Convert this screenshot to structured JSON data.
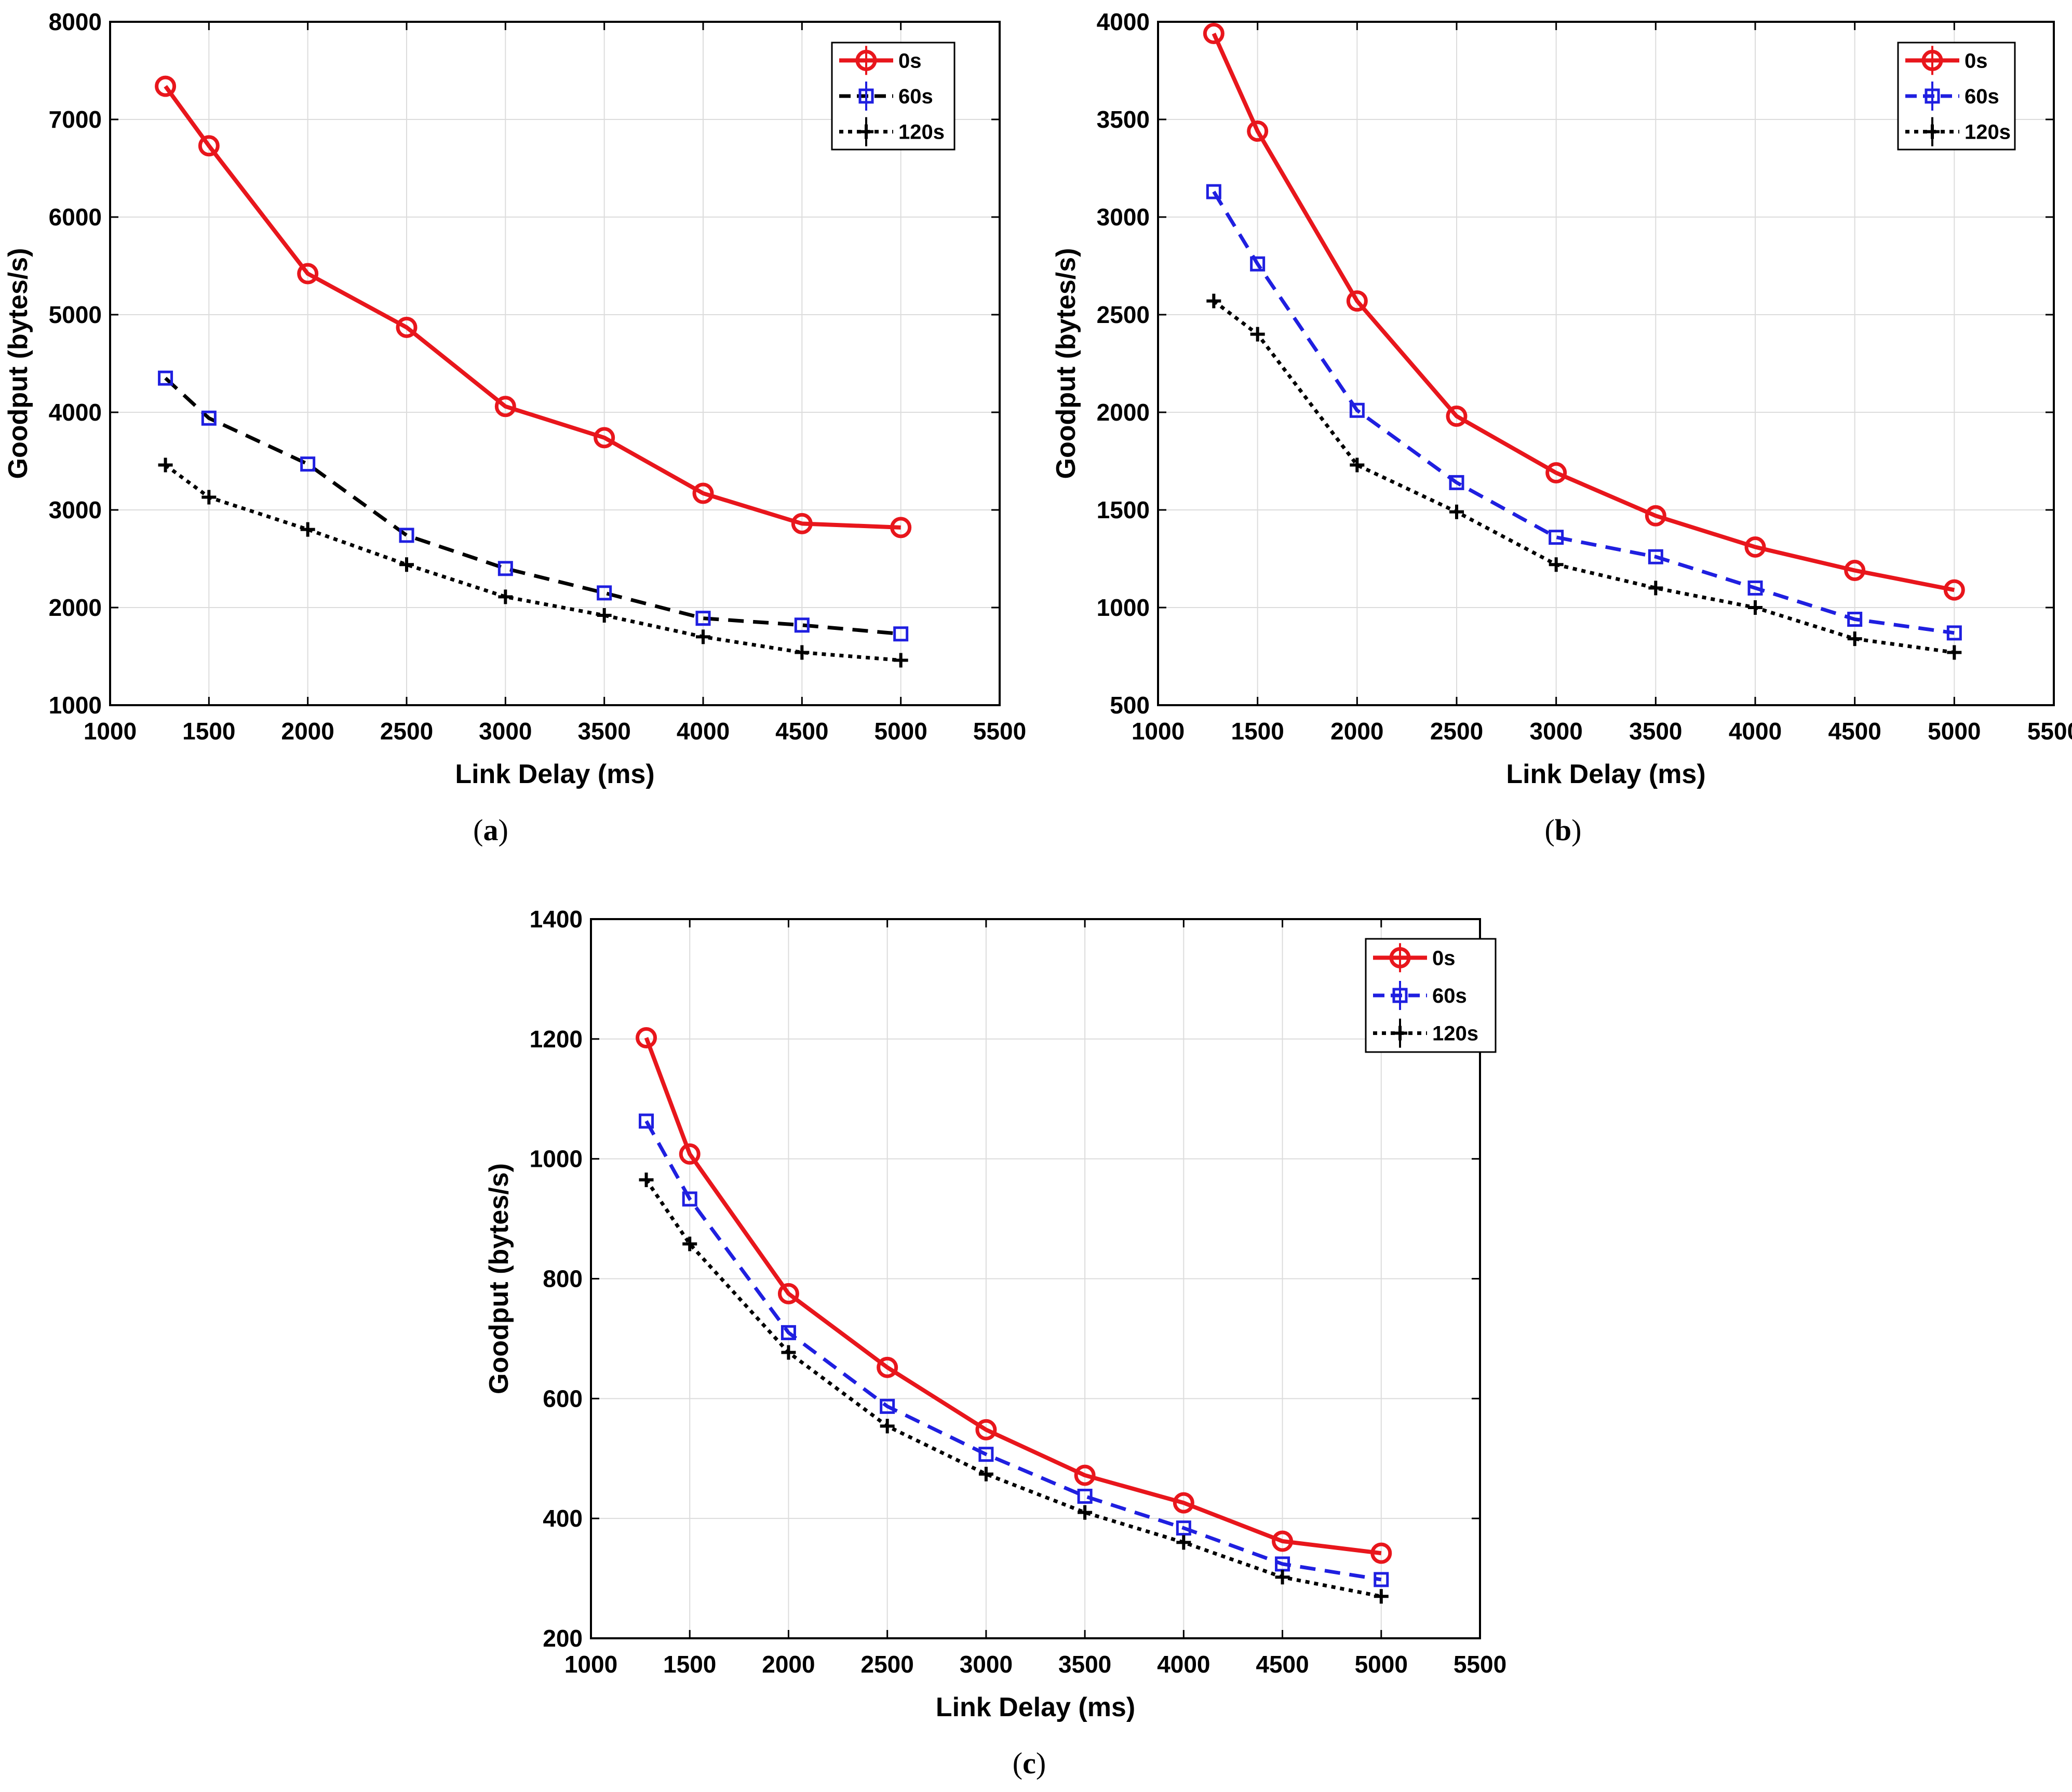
{
  "chart_data": [
    {
      "type": "line",
      "panel": "a",
      "caption_letter": "a",
      "xlabel": "Link Delay (ms)",
      "ylabel": "Goodput (bytes/s)",
      "xlim": [
        1000,
        5500
      ],
      "ylim": [
        1000,
        8000
      ],
      "xticks": [
        1000,
        1500,
        2000,
        2500,
        3000,
        3500,
        4000,
        4500,
        5000,
        5500
      ],
      "yticks": [
        1000,
        2000,
        3000,
        4000,
        5000,
        6000,
        7000,
        8000
      ],
      "grid": true,
      "legend_position": "top-right",
      "x": [
        1280,
        1500,
        2000,
        2500,
        3000,
        3500,
        4000,
        4500,
        5000
      ],
      "series": [
        {
          "name": "0s",
          "color": "#e8161c",
          "style": "solid",
          "marker": "circle",
          "values": [
            7340,
            6730,
            5420,
            4870,
            4060,
            3740,
            3170,
            2860,
            2820
          ]
        },
        {
          "name": "60s",
          "color": "#000000",
          "marker_color": "#1f1fe0",
          "style": "dashed",
          "marker": "square",
          "values": [
            4350,
            3940,
            3470,
            2740,
            2400,
            2150,
            1890,
            1820,
            1730
          ]
        },
        {
          "name": "120s",
          "color": "#000000",
          "style": "dotted",
          "marker": "plus",
          "values": [
            3460,
            3130,
            2800,
            2440,
            2110,
            1920,
            1700,
            1540,
            1460
          ]
        }
      ]
    },
    {
      "type": "line",
      "panel": "b",
      "caption_letter": "b",
      "xlabel": "Link Delay (ms)",
      "ylabel": "Goodput (bytes/s)",
      "xlim": [
        1000,
        5500
      ],
      "ylim": [
        500,
        4000
      ],
      "xticks": [
        1000,
        1500,
        2000,
        2500,
        3000,
        3500,
        4000,
        4500,
        5000,
        5500
      ],
      "yticks": [
        500,
        1000,
        1500,
        2000,
        2500,
        3000,
        3500,
        4000
      ],
      "grid": true,
      "legend_position": "top-right",
      "x": [
        1280,
        1500,
        2000,
        2500,
        3000,
        3500,
        4000,
        4500,
        5000
      ],
      "series": [
        {
          "name": "0s",
          "color": "#e8161c",
          "style": "solid",
          "marker": "circle",
          "values": [
            3940,
            3440,
            2570,
            1980,
            1690,
            1470,
            1310,
            1190,
            1090
          ]
        },
        {
          "name": "60s",
          "color": "#1f1fe0",
          "style": "dashed",
          "marker": "square",
          "values": [
            3130,
            2760,
            2010,
            1640,
            1360,
            1260,
            1100,
            940,
            870
          ]
        },
        {
          "name": "120s",
          "color": "#000000",
          "style": "dotted",
          "marker": "plus",
          "values": [
            2570,
            2400,
            1730,
            1490,
            1220,
            1100,
            1000,
            840,
            770
          ]
        }
      ]
    },
    {
      "type": "line",
      "panel": "c",
      "caption_letter": "c",
      "xlabel": "Link Delay (ms)",
      "ylabel": "Goodput (bytes/s)",
      "xlim": [
        1000,
        5500
      ],
      "ylim": [
        200,
        1400
      ],
      "xticks": [
        1000,
        1500,
        2000,
        2500,
        3000,
        3500,
        4000,
        4500,
        5000,
        5500
      ],
      "yticks": [
        200,
        400,
        600,
        800,
        1000,
        1200,
        1400
      ],
      "grid": true,
      "legend_position": "top-right",
      "x": [
        1280,
        1500,
        2000,
        2500,
        3000,
        3500,
        4000,
        4500,
        5000
      ],
      "series": [
        {
          "name": "0s",
          "color": "#e8161c",
          "style": "solid",
          "marker": "circle",
          "values": [
            1202,
            1008,
            775,
            652,
            548,
            472,
            426,
            362,
            342
          ]
        },
        {
          "name": "60s",
          "color": "#1f1fe0",
          "style": "dashed",
          "marker": "square",
          "values": [
            1063,
            933,
            710,
            587,
            507,
            437,
            384,
            324,
            298
          ]
        },
        {
          "name": "120s",
          "color": "#000000",
          "style": "dotted",
          "marker": "plus",
          "values": [
            965,
            858,
            677,
            554,
            474,
            410,
            360,
            302,
            270
          ]
        }
      ]
    }
  ]
}
